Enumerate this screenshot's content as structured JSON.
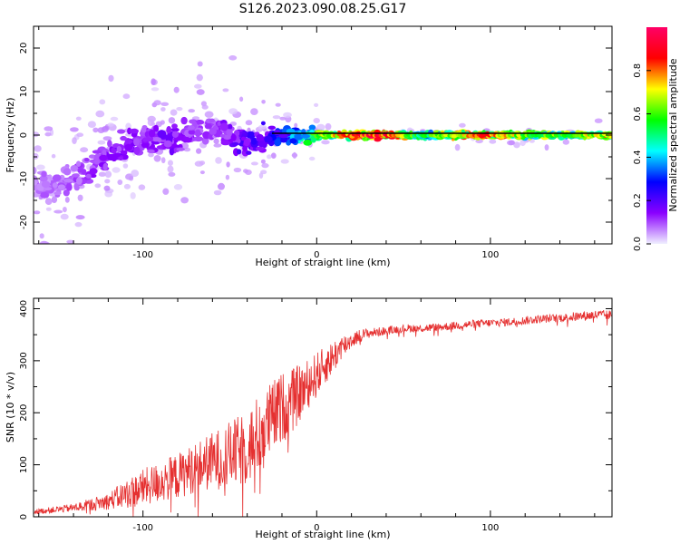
{
  "figure": {
    "title": "S126.2023.090.08.25.G17"
  },
  "chart_data": [
    {
      "type": "heatmap",
      "panel": "top",
      "xlabel": "Height of straight line (km)",
      "ylabel": "Frequency (Hz)",
      "xlim": [
        -163,
        170
      ],
      "ylim": [
        -25,
        25
      ],
      "x_ticks": [
        -100,
        0,
        100
      ],
      "y_ticks": [
        -20,
        -10,
        0,
        10,
        20
      ],
      "colorbar": {
        "label": "Normalized spectral amplitude",
        "range": [
          0,
          1
        ],
        "ticks": [
          0.0,
          0.2,
          0.4,
          0.6,
          0.8
        ],
        "colormap": [
          "#f0f0ff",
          "#8a00ff",
          "#0000ff",
          "#00ffff",
          "#00ff00",
          "#ffff00",
          "#ff0000",
          "#ff0066"
        ]
      },
      "ridge": {
        "x": [
          -163,
          -150,
          -140,
          -130,
          -120,
          -110,
          -100,
          -90,
          -80,
          -70,
          -60,
          -50,
          -40,
          -30,
          -20,
          -10,
          0,
          10,
          20,
          40,
          60,
          80,
          100,
          120,
          140,
          170
        ],
        "freq": [
          -11,
          -11.5,
          -10,
          -7,
          -4,
          -3,
          0,
          -1,
          -0.5,
          1,
          2,
          0,
          -2,
          -1,
          0,
          0,
          0,
          0,
          0,
          0,
          0,
          0,
          0,
          0,
          0,
          0
        ],
        "amplitude": [
          0.08,
          0.08,
          0.1,
          0.12,
          0.15,
          0.15,
          0.12,
          0.15,
          0.15,
          0.12,
          0.1,
          0.15,
          0.2,
          0.2,
          0.3,
          0.4,
          0.6,
          0.7,
          0.8,
          0.85,
          0.5,
          0.7,
          0.8,
          0.6,
          0.6,
          0.7
        ]
      }
    },
    {
      "type": "line",
      "panel": "bottom",
      "xlabel": "Height of straight line (km)",
      "ylabel": "SNR (10 * v/v)",
      "xlim": [
        -163,
        170
      ],
      "ylim": [
        0,
        420
      ],
      "x_ticks": [
        -100,
        0,
        100
      ],
      "y_ticks": [
        0,
        100,
        200,
        300,
        400
      ],
      "series": [
        {
          "color": "#e53030",
          "x": [
            -163,
            -150,
            -140,
            -130,
            -120,
            -110,
            -100,
            -90,
            -80,
            -70,
            -60,
            -50,
            -40,
            -35,
            -30,
            -25,
            -20,
            -15,
            -10,
            -5,
            0,
            5,
            10,
            15,
            20,
            25,
            30,
            40,
            50,
            60,
            70,
            80,
            90,
            100,
            110,
            120,
            130,
            140,
            150,
            160,
            170
          ],
          "values": [
            8,
            12,
            15,
            20,
            25,
            35,
            45,
            55,
            65,
            80,
            90,
            100,
            110,
            130,
            150,
            170,
            190,
            200,
            220,
            240,
            260,
            280,
            300,
            320,
            335,
            345,
            350,
            355,
            360,
            360,
            362,
            365,
            368,
            370,
            372,
            375,
            378,
            380,
            382,
            385,
            385
          ],
          "noise": [
            6,
            8,
            10,
            15,
            20,
            35,
            45,
            50,
            55,
            60,
            70,
            80,
            90,
            95,
            95,
            90,
            85,
            80,
            70,
            60,
            55,
            45,
            40,
            30,
            20,
            15,
            12,
            10,
            10,
            10,
            10,
            10,
            10,
            10,
            10,
            10,
            10,
            10,
            12,
            12,
            12
          ]
        }
      ]
    }
  ]
}
